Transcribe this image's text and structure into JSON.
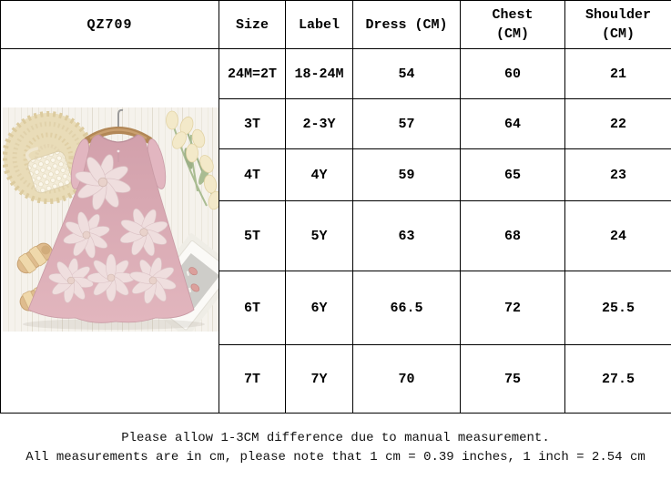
{
  "product": {
    "code": "QZ709",
    "photo_description": "Dusty pink sleeveless A-line toddler dress with ivory 3D flower appliques and ruffle cap sleeves, hung on a wooden hanger over white wood planks, styled with a beige crochet doily, a pearl straw mini bag, cream tulips, tan woven sandals and a white notebook with pink hair clips"
  },
  "size_chart": {
    "columns": [
      "Size",
      "Label",
      "Dress (CM)",
      "Chest (CM)",
      "Shoulder (CM)"
    ],
    "column_keys": [
      "size",
      "label",
      "dress",
      "chest",
      "shoulder"
    ],
    "rows": [
      {
        "size": "24M=2T",
        "label": "18-24M",
        "dress": "54",
        "chest": "60",
        "shoulder": "21"
      },
      {
        "size": "3T",
        "label": "2-3Y",
        "dress": "57",
        "chest": "64",
        "shoulder": "22"
      },
      {
        "size": "4T",
        "label": "4Y",
        "dress": "59",
        "chest": "65",
        "shoulder": "23"
      },
      {
        "size": "5T",
        "label": "5Y",
        "dress": "63",
        "chest": "68",
        "shoulder": "24"
      },
      {
        "size": "6T",
        "label": "6Y",
        "dress": "66.5",
        "chest": "72",
        "shoulder": "25.5"
      },
      {
        "size": "7T",
        "label": "7Y",
        "dress": "70",
        "chest": "75",
        "shoulder": "27.5"
      }
    ]
  },
  "notes": {
    "line1": "Please allow 1-3CM difference due to manual measurement.",
    "line2": "All measurements are in cm, please note that 1 cm = 0.39 inches, 1 inch = 2.54 cm"
  },
  "colors": {
    "table_border": "#000000",
    "text": "#000000",
    "dress_pink": "#d6a7b1",
    "flower_ivory": "#efdede",
    "hanger_wood": "#b28756",
    "doily_beige": "#e9dcb8",
    "tulip_cream": "#f3e9c9",
    "sandal_tan": "#dfbc8e",
    "photo_background": "#f5f2ec"
  }
}
